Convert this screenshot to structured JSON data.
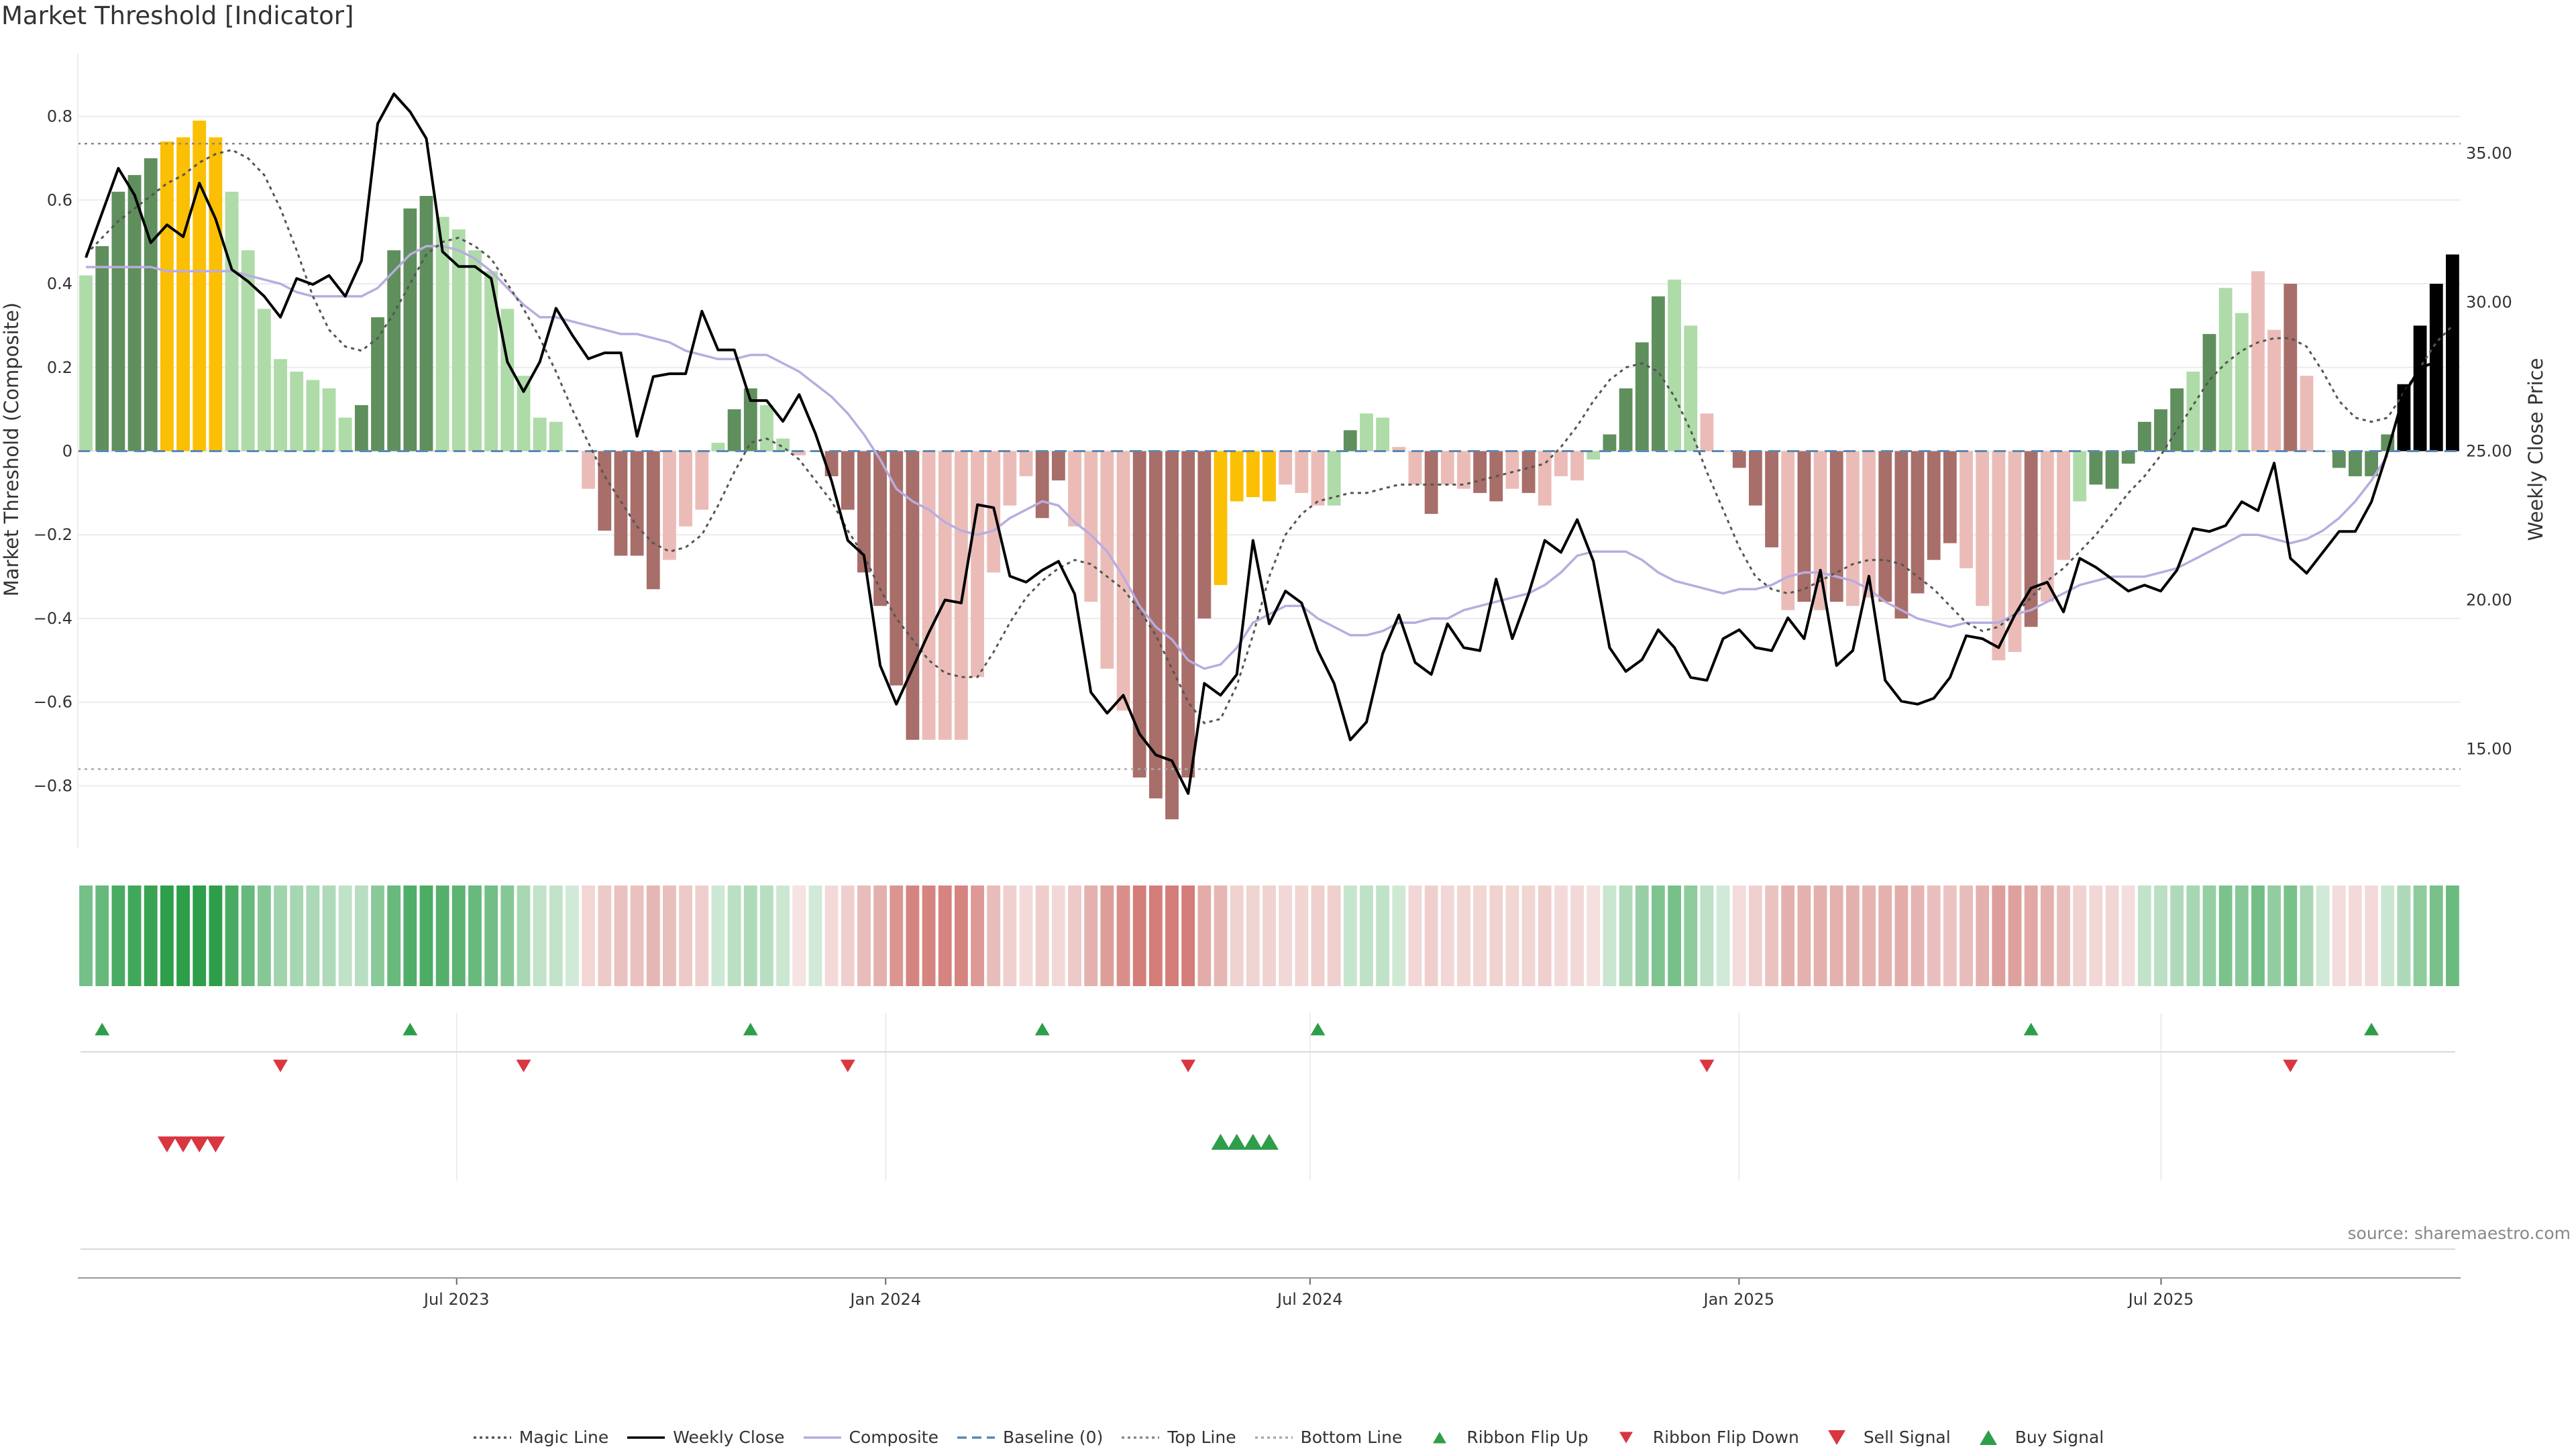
{
  "title": "Market Threshold [Indicator]",
  "source": "source: sharemaestro.com",
  "colors": {
    "buy": "#2e9e4a",
    "sell": "#d93640",
    "gold": "#fbbf03",
    "dark_green": "#5f8f5d",
    "light_green": "#aedba8",
    "dark_red": "#a86e69",
    "light_red": "#ebbcb7",
    "composite": "#b9acdf",
    "baseline": "#5b87b5",
    "close": "#000000",
    "magic": "#555555"
  },
  "chart_data": {
    "type": "bar",
    "title": "Market Threshold [Indicator]",
    "ylabel_left": "Market Threshold (Composite)",
    "ylabel_right": "Weekly Close Price",
    "ylim_left": [
      -0.95,
      0.95
    ],
    "ylim_right": [
      11.65,
      38.35
    ],
    "yticks_left": [
      "0.8",
      "0.6",
      "0.4",
      "0.2",
      "0",
      "−0.2",
      "−0.4",
      "−0.6",
      "−0.8"
    ],
    "yticks_right": [
      "35.00",
      "30.00",
      "25.00",
      "20.00",
      "15.00"
    ],
    "x_start": "2023-01-23",
    "x_end": "2025-11-03",
    "xticks": [
      {
        "label": "Jul 2023",
        "date": "2023-07-01"
      },
      {
        "label": "Jan 2024",
        "date": "2024-01-01"
      },
      {
        "label": "Jul 2024",
        "date": "2024-07-01"
      },
      {
        "label": "Jan 2025",
        "date": "2025-01-01"
      },
      {
        "label": "Jul 2025",
        "date": "2025-07-01"
      }
    ],
    "top_line": 0.735,
    "bottom_line": -0.76,
    "baseline": 0,
    "composite": [
      0.42,
      0.49,
      0.62,
      0.66,
      0.7,
      0.74,
      0.75,
      0.79,
      0.75,
      0.62,
      0.48,
      0.34,
      0.22,
      0.19,
      0.17,
      0.15,
      0.08,
      0.11,
      0.32,
      0.48,
      0.58,
      0.61,
      0.56,
      0.53,
      0.48,
      0.43,
      0.34,
      0.18,
      0.08,
      0.07,
      0.0,
      -0.09,
      -0.19,
      -0.25,
      -0.25,
      -0.33,
      -0.26,
      -0.18,
      -0.14,
      0.02,
      0.1,
      0.15,
      0.11,
      0.03,
      -0.01,
      0.0,
      -0.06,
      -0.14,
      -0.29,
      -0.37,
      -0.56,
      -0.69,
      -0.69,
      -0.69,
      -0.69,
      -0.54,
      -0.29,
      -0.13,
      -0.06,
      -0.16,
      -0.07,
      -0.18,
      -0.36,
      -0.52,
      -0.62,
      -0.78,
      -0.83,
      -0.88,
      -0.78,
      -0.4,
      -0.32,
      -0.12,
      -0.11,
      -0.12,
      -0.08,
      -0.1,
      -0.13,
      -0.13,
      0.05,
      0.09,
      0.08,
      0.01,
      -0.08,
      -0.15,
      -0.08,
      -0.09,
      -0.1,
      -0.12,
      -0.09,
      -0.1,
      -0.13,
      -0.06,
      -0.07,
      -0.02,
      0.04,
      0.15,
      0.26,
      0.37,
      0.41,
      0.3,
      0.09,
      0.0,
      -0.04,
      -0.13,
      -0.23,
      -0.38,
      -0.36,
      -0.38,
      -0.36,
      -0.37,
      -0.35,
      -0.36,
      -0.4,
      -0.34,
      -0.26,
      -0.22,
      -0.28,
      -0.37,
      -0.5,
      -0.48,
      -0.42,
      -0.36,
      -0.26,
      -0.12,
      -0.08,
      -0.09,
      -0.03,
      0.07,
      0.1,
      0.15,
      0.19,
      0.28,
      0.39,
      0.33,
      0.43,
      0.29,
      0.4,
      0.18,
      0.0,
      -0.04,
      -0.06,
      -0.06,
      0.04,
      0.16,
      0.3,
      0.4,
      0.47
    ],
    "bar_shades": [
      "light_green",
      "dark_green",
      "dark_green",
      "dark_green",
      "dark_green",
      "gold",
      "gold",
      "gold",
      "gold",
      "light_green",
      "light_green",
      "light_green",
      "light_green",
      "light_green",
      "light_green",
      "light_green",
      "light_green",
      "dark_green",
      "dark_green",
      "dark_green",
      "dark_green",
      "dark_green",
      "light_green",
      "light_green",
      "light_green",
      "light_green",
      "light_green",
      "light_green",
      "light_green",
      "light_green",
      "light_green",
      "light_red",
      "dark_red",
      "dark_red",
      "dark_red",
      "dark_red",
      "light_red",
      "light_red",
      "light_red",
      "light_green",
      "dark_green",
      "dark_green",
      "light_green",
      "light_green",
      "light_red",
      "light_red",
      "dark_red",
      "dark_red",
      "dark_red",
      "dark_red",
      "dark_red",
      "dark_red",
      "light_red",
      "light_red",
      "light_red",
      "light_red",
      "light_red",
      "light_red",
      "light_red",
      "dark_red",
      "dark_red",
      "light_red",
      "light_red",
      "light_red",
      "light_red",
      "dark_red",
      "dark_red",
      "dark_red",
      "dark_red",
      "dark_red",
      "gold",
      "gold",
      "gold",
      "gold",
      "light_red",
      "light_red",
      "light_red",
      "light_green",
      "dark_green",
      "light_green",
      "light_green",
      "light_red",
      "light_red",
      "dark_red",
      "light_red",
      "light_red",
      "dark_red",
      "dark_red",
      "light_red",
      "dark_red",
      "light_red",
      "light_red",
      "light_red",
      "light_green",
      "dark_green",
      "dark_green",
      "dark_green",
      "dark_green",
      "light_green",
      "light_green",
      "light_red",
      "light_red",
      "dark_red",
      "dark_red",
      "dark_red",
      "light_red",
      "dark_red",
      "light_red",
      "dark_red",
      "light_red",
      "light_red",
      "dark_red",
      "dark_red",
      "dark_red",
      "dark_red",
      "dark_red",
      "light_red",
      "light_red",
      "light_red",
      "light_red",
      "dark_red",
      "light_red",
      "light_red",
      "light_green",
      "dark_green",
      "dark_green",
      "dark_green",
      "dark_green",
      "dark_green",
      "dark_green",
      "light_green",
      "dark_green",
      "light_green",
      "light_green",
      "light_red",
      "light_red",
      "dark_red",
      "light_red",
      "light_green",
      "dark_green",
      "dark_green",
      "dark_green",
      "dark_green"
    ],
    "weekly_close": [
      31.5,
      33.0,
      34.5,
      33.6,
      32.0,
      32.6,
      32.2,
      34.0,
      32.8,
      31.1,
      30.7,
      30.2,
      29.5,
      30.8,
      30.6,
      30.9,
      30.2,
      31.4,
      36.0,
      37.0,
      36.4,
      35.5,
      31.7,
      31.2,
      31.2,
      30.8,
      28.0,
      27.0,
      28.0,
      29.8,
      28.9,
      28.1,
      28.3,
      28.3,
      25.5,
      27.5,
      27.6,
      27.6,
      29.7,
      28.4,
      28.4,
      26.7,
      26.7,
      26.0,
      26.9,
      25.6,
      24.0,
      22.0,
      21.5,
      17.8,
      16.5,
      17.7,
      18.9,
      20.0,
      19.9,
      23.2,
      23.1,
      20.8,
      20.6,
      21.0,
      21.3,
      20.2,
      16.9,
      16.2,
      16.8,
      15.5,
      14.8,
      14.6,
      13.5,
      17.2,
      16.8,
      17.5,
      22.0,
      19.2,
      20.3,
      19.9,
      18.3,
      17.2,
      15.3,
      15.9,
      18.2,
      19.5,
      17.9,
      17.5,
      19.2,
      18.4,
      18.3,
      20.7,
      18.7,
      20.2,
      22.0,
      21.6,
      22.7,
      21.3,
      18.4,
      17.6,
      18.0,
      19.0,
      18.4,
      17.4,
      17.3,
      18.7,
      19.0,
      18.4,
      18.3,
      19.4,
      18.7,
      21.0,
      17.8,
      18.3,
      20.8,
      17.3,
      16.6,
      16.5,
      16.7,
      17.4,
      18.8,
      18.7,
      18.4,
      19.5,
      20.4,
      20.6,
      19.6,
      21.4,
      21.1,
      20.7,
      20.3,
      20.5,
      20.3,
      21.0,
      22.4,
      22.3,
      22.5,
      23.3,
      23.0,
      24.6,
      21.4,
      20.9,
      21.6,
      22.3,
      22.3,
      23.3,
      25.0,
      26.9,
      27.8,
      28.0
    ],
    "composite_line": [
      0.44,
      0.44,
      0.44,
      0.44,
      0.44,
      0.43,
      0.43,
      0.43,
      0.43,
      0.43,
      0.42,
      0.41,
      0.4,
      0.38,
      0.37,
      0.37,
      0.37,
      0.37,
      0.39,
      0.43,
      0.47,
      0.49,
      0.49,
      0.48,
      0.46,
      0.43,
      0.39,
      0.35,
      0.32,
      0.32,
      0.31,
      0.3,
      0.29,
      0.28,
      0.28,
      0.27,
      0.26,
      0.24,
      0.23,
      0.22,
      0.22,
      0.23,
      0.23,
      0.21,
      0.19,
      0.16,
      0.13,
      0.09,
      0.04,
      -0.02,
      -0.09,
      -0.12,
      -0.14,
      -0.17,
      -0.19,
      -0.2,
      -0.19,
      -0.16,
      -0.14,
      -0.12,
      -0.13,
      -0.17,
      -0.2,
      -0.24,
      -0.3,
      -0.37,
      -0.42,
      -0.45,
      -0.5,
      -0.52,
      -0.51,
      -0.47,
      -0.41,
      -0.39,
      -0.37,
      -0.37,
      -0.4,
      -0.42,
      -0.44,
      -0.44,
      -0.43,
      -0.41,
      -0.41,
      -0.4,
      -0.4,
      -0.38,
      -0.37,
      -0.36,
      -0.35,
      -0.34,
      -0.32,
      -0.29,
      -0.25,
      -0.24,
      -0.24,
      -0.24,
      -0.26,
      -0.29,
      -0.31,
      -0.32,
      -0.33,
      -0.34,
      -0.33,
      -0.33,
      -0.32,
      -0.3,
      -0.29,
      -0.29,
      -0.3,
      -0.31,
      -0.33,
      -0.36,
      -0.38,
      -0.4,
      -0.41,
      -0.42,
      -0.41,
      -0.41,
      -0.41,
      -0.39,
      -0.38,
      -0.36,
      -0.34,
      -0.32,
      -0.31,
      -0.3,
      -0.3,
      -0.3,
      -0.29,
      -0.28,
      -0.26,
      -0.24,
      -0.22,
      -0.2,
      -0.2,
      -0.21,
      -0.22,
      -0.21,
      -0.19,
      -0.16,
      -0.12,
      -0.07,
      -0.01
    ],
    "magic_line": [
      0.47,
      0.51,
      0.55,
      0.58,
      0.61,
      0.64,
      0.66,
      0.69,
      0.71,
      0.72,
      0.7,
      0.66,
      0.58,
      0.48,
      0.37,
      0.29,
      0.25,
      0.24,
      0.27,
      0.33,
      0.4,
      0.47,
      0.5,
      0.51,
      0.49,
      0.46,
      0.4,
      0.34,
      0.27,
      0.19,
      0.1,
      0.02,
      -0.06,
      -0.12,
      -0.18,
      -0.22,
      -0.24,
      -0.23,
      -0.2,
      -0.13,
      -0.05,
      0.02,
      0.03,
      0.01,
      -0.02,
      -0.07,
      -0.12,
      -0.19,
      -0.25,
      -0.33,
      -0.4,
      -0.45,
      -0.5,
      -0.53,
      -0.54,
      -0.54,
      -0.48,
      -0.41,
      -0.35,
      -0.31,
      -0.28,
      -0.26,
      -0.27,
      -0.3,
      -0.33,
      -0.38,
      -0.44,
      -0.52,
      -0.6,
      -0.65,
      -0.64,
      -0.56,
      -0.44,
      -0.3,
      -0.2,
      -0.15,
      -0.12,
      -0.11,
      -0.1,
      -0.1,
      -0.09,
      -0.08,
      -0.08,
      -0.08,
      -0.08,
      -0.08,
      -0.07,
      -0.06,
      -0.05,
      -0.04,
      -0.03,
      0.01,
      0.06,
      0.12,
      0.17,
      0.2,
      0.21,
      0.19,
      0.13,
      0.05,
      -0.05,
      -0.14,
      -0.23,
      -0.3,
      -0.33,
      -0.34,
      -0.33,
      -0.31,
      -0.29,
      -0.27,
      -0.26,
      -0.26,
      -0.27,
      -0.3,
      -0.33,
      -0.37,
      -0.41,
      -0.43,
      -0.42,
      -0.39,
      -0.35,
      -0.31,
      -0.28,
      -0.24,
      -0.2,
      -0.15,
      -0.1,
      -0.06,
      -0.01,
      0.05,
      0.11,
      0.17,
      0.21,
      0.24,
      0.26,
      0.27,
      0.27,
      0.25,
      0.19,
      0.12,
      0.08,
      0.07,
      0.08,
      0.14,
      0.2,
      0.26,
      0.3
    ],
    "ribbon_flip_up_idx": [
      1,
      20,
      41,
      59,
      76,
      120,
      141
    ],
    "ribbon_flip_down_idx": [
      12,
      27,
      47,
      68,
      100,
      136
    ],
    "sell_signal_idx": [
      5,
      6,
      7,
      8
    ],
    "buy_signal_idx": [
      70,
      71,
      72,
      73
    ]
  },
  "legend": [
    {
      "label": "Magic Line",
      "kind": "dotted",
      "color": "#555555"
    },
    {
      "label": "Weekly Close",
      "kind": "solid",
      "color": "#000000"
    },
    {
      "label": "Composite",
      "kind": "solid",
      "color": "#b9acdf"
    },
    {
      "label": "Baseline (0)",
      "kind": "dashed",
      "color": "#5b87b5"
    },
    {
      "label": "Top Line",
      "kind": "dotted",
      "color": "#888888"
    },
    {
      "label": "Bottom Line",
      "kind": "dotted",
      "color": "#aaaaaa"
    },
    {
      "label": "Ribbon Flip Up",
      "kind": "tri-up-small",
      "color": "#2e9e4a"
    },
    {
      "label": "Ribbon Flip Down",
      "kind": "tri-down-small",
      "color": "#d93640"
    },
    {
      "label": "Sell Signal",
      "kind": "tri-down",
      "color": "#d93640"
    },
    {
      "label": "Buy Signal",
      "kind": "tri-up",
      "color": "#2e9e4a"
    }
  ]
}
